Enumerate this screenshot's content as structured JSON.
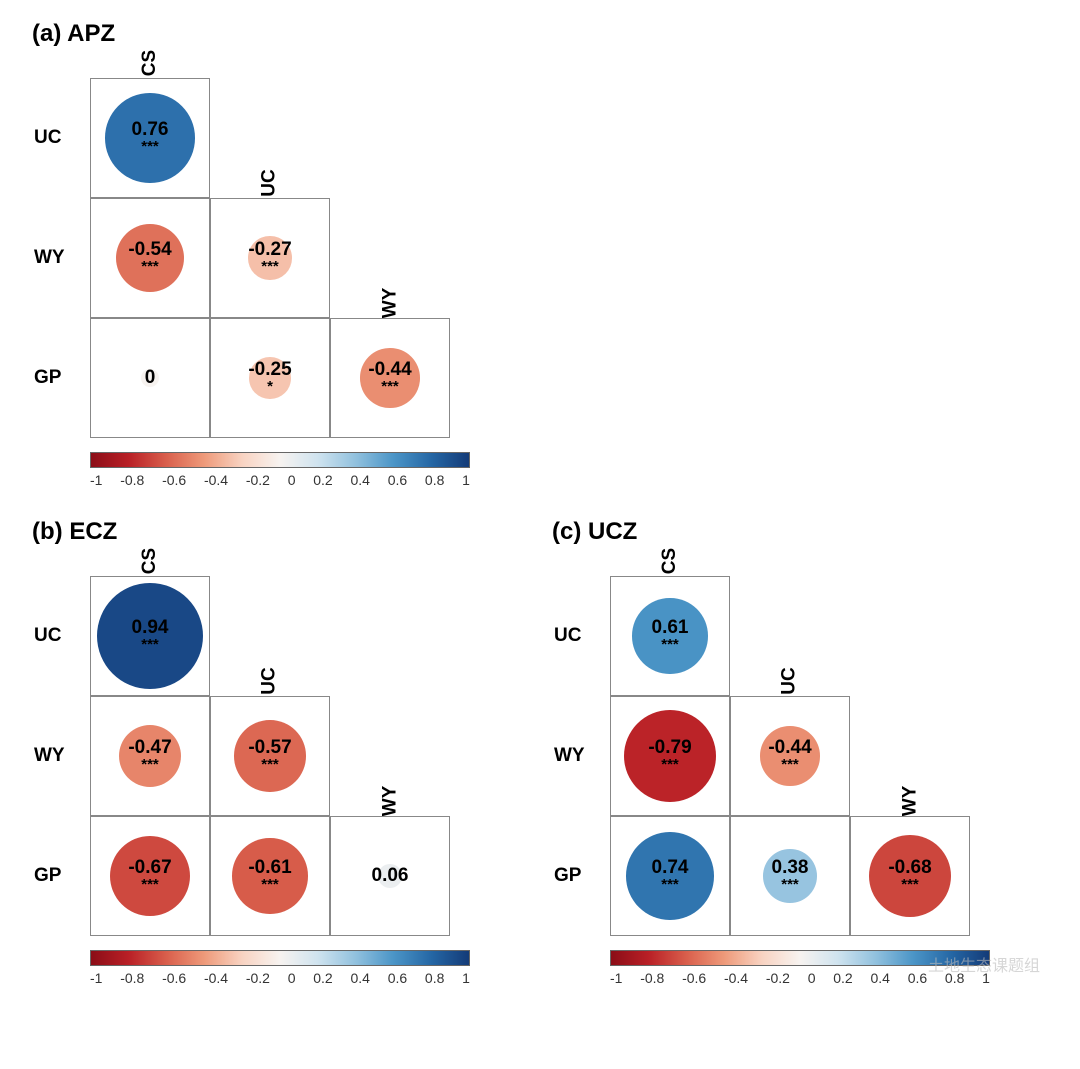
{
  "figure": {
    "background_color": "#ffffff",
    "cell_border_color": "#888888",
    "title_fontsize": 24,
    "label_fontsize": 19,
    "value_fontsize": 19,
    "sig_fontsize": 15,
    "tick_fontsize": 14,
    "panels": [
      "a",
      "b",
      "c"
    ]
  },
  "colorscale": {
    "stops": [
      {
        "v": -1.0,
        "color": "#8b0d17"
      },
      {
        "v": -0.8,
        "color": "#b92026"
      },
      {
        "v": -0.6,
        "color": "#d95f4c"
      },
      {
        "v": -0.4,
        "color": "#ee9a7a"
      },
      {
        "v": -0.2,
        "color": "#f8d3c2"
      },
      {
        "v": 0.0,
        "color": "#f7f3f0"
      },
      {
        "v": 0.2,
        "color": "#cfe3ef"
      },
      {
        "v": 0.4,
        "color": "#91c1de"
      },
      {
        "v": 0.6,
        "color": "#4b95c7"
      },
      {
        "v": 0.8,
        "color": "#2567a5"
      },
      {
        "v": 1.0,
        "color": "#143b78"
      }
    ],
    "ticks": [
      "-1",
      "-0.8",
      "-0.6",
      "-0.4",
      "-0.2",
      "0",
      "0.2",
      "0.4",
      "0.6",
      "0.8",
      "1"
    ]
  },
  "panels": {
    "a": {
      "title": "(a) APZ",
      "row_labels": [
        "UC",
        "WY",
        "GP"
      ],
      "col_labels": [
        "CS",
        "UC",
        "WY"
      ],
      "cells": [
        {
          "row": 0,
          "col": 0,
          "value": 0.76,
          "label": "0.76",
          "sig": "***"
        },
        {
          "row": 1,
          "col": 0,
          "value": -0.54,
          "label": "-0.54",
          "sig": "***"
        },
        {
          "row": 1,
          "col": 1,
          "value": -0.27,
          "label": "-0.27",
          "sig": "***"
        },
        {
          "row": 2,
          "col": 0,
          "value": 0,
          "label": "0",
          "sig": ""
        },
        {
          "row": 2,
          "col": 1,
          "value": -0.25,
          "label": "-0.25",
          "sig": "*"
        },
        {
          "row": 2,
          "col": 2,
          "value": -0.44,
          "label": "-0.44",
          "sig": "***"
        }
      ]
    },
    "b": {
      "title": "(b) ECZ",
      "row_labels": [
        "UC",
        "WY",
        "GP"
      ],
      "col_labels": [
        "CS",
        "UC",
        "WY"
      ],
      "cells": [
        {
          "row": 0,
          "col": 0,
          "value": 0.94,
          "label": "0.94",
          "sig": "***"
        },
        {
          "row": 1,
          "col": 0,
          "value": -0.47,
          "label": "-0.47",
          "sig": "***"
        },
        {
          "row": 1,
          "col": 1,
          "value": -0.57,
          "label": "-0.57",
          "sig": "***"
        },
        {
          "row": 2,
          "col": 0,
          "value": -0.67,
          "label": "-0.67",
          "sig": "***"
        },
        {
          "row": 2,
          "col": 1,
          "value": -0.61,
          "label": "-0.61",
          "sig": "***"
        },
        {
          "row": 2,
          "col": 2,
          "value": 0.06,
          "label": "0.06",
          "sig": ""
        }
      ]
    },
    "c": {
      "title": "(c) UCZ",
      "row_labels": [
        "UC",
        "WY",
        "GP"
      ],
      "col_labels": [
        "CS",
        "UC",
        "WY"
      ],
      "cells": [
        {
          "row": 0,
          "col": 0,
          "value": 0.61,
          "label": "0.61",
          "sig": "***"
        },
        {
          "row": 1,
          "col": 0,
          "value": -0.79,
          "label": "-0.79",
          "sig": "***"
        },
        {
          "row": 1,
          "col": 1,
          "value": -0.44,
          "label": "-0.44",
          "sig": "***"
        },
        {
          "row": 2,
          "col": 0,
          "value": 0.74,
          "label": "0.74",
          "sig": "***"
        },
        {
          "row": 2,
          "col": 1,
          "value": 0.38,
          "label": "0.38",
          "sig": "***"
        },
        {
          "row": 2,
          "col": 2,
          "value": -0.68,
          "label": "-0.68",
          "sig": "***"
        }
      ]
    }
  },
  "circle_sizing": {
    "min_diameter": 18,
    "max_diameter": 112
  },
  "watermark": "土地生态课题组"
}
